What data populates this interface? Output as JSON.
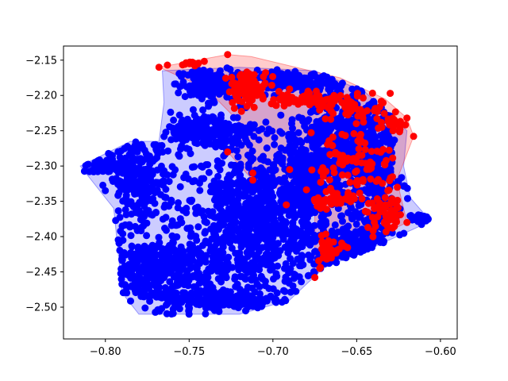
{
  "chart_data": {
    "type": "scatter",
    "title": "",
    "xlabel": "",
    "ylabel": "",
    "xlim": [
      -0.825,
      -0.59
    ],
    "ylim": [
      -2.545,
      -2.13
    ],
    "x_ticks": [
      -0.8,
      -0.75,
      -0.7,
      -0.65,
      -0.6
    ],
    "x_tick_labels": [
      "−0.80",
      "−0.75",
      "−0.70",
      "−0.65",
      "−0.60"
    ],
    "y_ticks": [
      -2.15,
      -2.2,
      -2.25,
      -2.3,
      -2.35,
      -2.4,
      -2.45,
      -2.5
    ],
    "y_tick_labels": [
      "−2.15",
      "−2.20",
      "−2.25",
      "−2.30",
      "−2.35",
      "−2.40",
      "−2.45",
      "−2.50"
    ],
    "grid": false,
    "legend": "none",
    "series": [
      {
        "color": "#0000ff",
        "hull_fill_opacity": 0.2,
        "hull": [
          [
            -0.766,
            -2.165
          ],
          [
            -0.72,
            -2.16
          ],
          [
            -0.675,
            -2.165
          ],
          [
            -0.645,
            -2.195
          ],
          [
            -0.62,
            -2.25
          ],
          [
            -0.622,
            -2.3
          ],
          [
            -0.618,
            -2.345
          ],
          [
            -0.607,
            -2.375
          ],
          [
            -0.612,
            -2.385
          ],
          [
            -0.64,
            -2.415
          ],
          [
            -0.67,
            -2.445
          ],
          [
            -0.69,
            -2.49
          ],
          [
            -0.72,
            -2.51
          ],
          [
            -0.78,
            -2.51
          ],
          [
            -0.79,
            -2.48
          ],
          [
            -0.795,
            -2.36
          ],
          [
            -0.815,
            -2.3
          ],
          [
            -0.785,
            -2.265
          ],
          [
            -0.768,
            -2.265
          ],
          [
            -0.765,
            -2.21
          ]
        ],
        "clusters": [
          {
            "center": [
              -0.71,
              -2.38
            ],
            "spread": [
              0.04,
              0.09
            ],
            "n": 900
          },
          {
            "center": [
              -0.78,
              -2.32
            ],
            "spread": [
              0.015,
              0.05
            ],
            "n": 250
          },
          {
            "center": [
              -0.77,
              -2.45
            ],
            "spread": [
              0.03,
              0.04
            ],
            "n": 350
          },
          {
            "center": [
              -0.73,
              -2.49
            ],
            "spread": [
              0.03,
              0.015
            ],
            "n": 200
          },
          {
            "center": [
              -0.8,
              -2.3
            ],
            "spread": [
              0.012,
              0.008
            ],
            "n": 60
          },
          {
            "center": [
              -0.74,
              -2.25
            ],
            "spread": [
              0.025,
              0.02
            ],
            "n": 200
          },
          {
            "center": [
              -0.74,
              -2.185
            ],
            "spread": [
              0.015,
              0.02
            ],
            "n": 160
          },
          {
            "center": [
              -0.69,
              -2.18
            ],
            "spread": [
              0.03,
              0.015
            ],
            "n": 180
          },
          {
            "center": [
              -0.66,
              -2.26
            ],
            "spread": [
              0.02,
              0.06
            ],
            "n": 350
          },
          {
            "center": [
              -0.64,
              -2.3
            ],
            "spread": [
              0.015,
              0.08
            ],
            "n": 300
          },
          {
            "center": [
              -0.65,
              -2.42
            ],
            "spread": [
              0.02,
              0.03
            ],
            "n": 200
          },
          {
            "center": [
              -0.61,
              -2.375
            ],
            "spread": [
              0.006,
              0.006
            ],
            "n": 40
          },
          {
            "center": [
              -0.68,
              -2.32
            ],
            "spread": [
              0.015,
              0.06
            ],
            "n": 200
          }
        ]
      },
      {
        "color": "#ff0000",
        "hull_fill_opacity": 0.2,
        "hull": [
          [
            -0.768,
            -2.16
          ],
          [
            -0.727,
            -2.142
          ],
          [
            -0.713,
            -2.145
          ],
          [
            -0.66,
            -2.175
          ],
          [
            -0.633,
            -2.205
          ],
          [
            -0.62,
            -2.232
          ],
          [
            -0.616,
            -2.258
          ],
          [
            -0.626,
            -2.32
          ],
          [
            -0.62,
            -2.38
          ],
          [
            -0.633,
            -2.395
          ],
          [
            -0.66,
            -2.42
          ],
          [
            -0.672,
            -2.445
          ],
          [
            -0.675,
            -2.458
          ],
          [
            -0.675,
            -2.35
          ],
          [
            -0.712,
            -2.32
          ],
          [
            -0.727,
            -2.28
          ],
          [
            -0.715,
            -2.25
          ],
          [
            -0.74,
            -2.19
          ]
        ],
        "clusters": [
          {
            "center": [
              -0.715,
              -2.19
            ],
            "spread": [
              0.01,
              0.02
            ],
            "n": 90
          },
          {
            "center": [
              -0.75,
              -2.152
            ],
            "spread": [
              0.008,
              0.004
            ],
            "n": 15
          },
          {
            "center": [
              -0.68,
              -2.205
            ],
            "spread": [
              0.02,
              0.01
            ],
            "n": 70
          },
          {
            "center": [
              -0.65,
              -2.22
            ],
            "spread": [
              0.02,
              0.02
            ],
            "n": 50
          },
          {
            "center": [
              -0.628,
              -2.24
            ],
            "spread": [
              0.005,
              0.01
            ],
            "n": 25
          },
          {
            "center": [
              -0.655,
              -2.3
            ],
            "spread": [
              0.02,
              0.05
            ],
            "n": 90
          },
          {
            "center": [
              -0.633,
              -2.38
            ],
            "spread": [
              0.01,
              0.05
            ],
            "n": 60
          },
          {
            "center": [
              -0.665,
              -2.43
            ],
            "spread": [
              0.01,
              0.02
            ],
            "n": 35
          },
          {
            "center": [
              -0.665,
              -2.35
            ],
            "spread": [
              0.012,
              0.01
            ],
            "n": 30
          }
        ],
        "points": [
          [
            -0.768,
            -2.16
          ],
          [
            -0.763,
            -2.157
          ],
          [
            -0.727,
            -2.142
          ],
          [
            -0.727,
            -2.28
          ],
          [
            -0.712,
            -2.32
          ],
          [
            -0.712,
            -2.31
          ],
          [
            -0.616,
            -2.258
          ],
          [
            -0.62,
            -2.232
          ],
          [
            -0.675,
            -2.458
          ],
          [
            -0.672,
            -2.445
          ],
          [
            -0.62,
            -2.38
          ],
          [
            -0.63,
            -2.197
          ],
          [
            -0.692,
            -2.355
          ],
          [
            -0.673,
            -2.345
          ],
          [
            -0.69,
            -2.305
          ]
        ]
      }
    ]
  }
}
